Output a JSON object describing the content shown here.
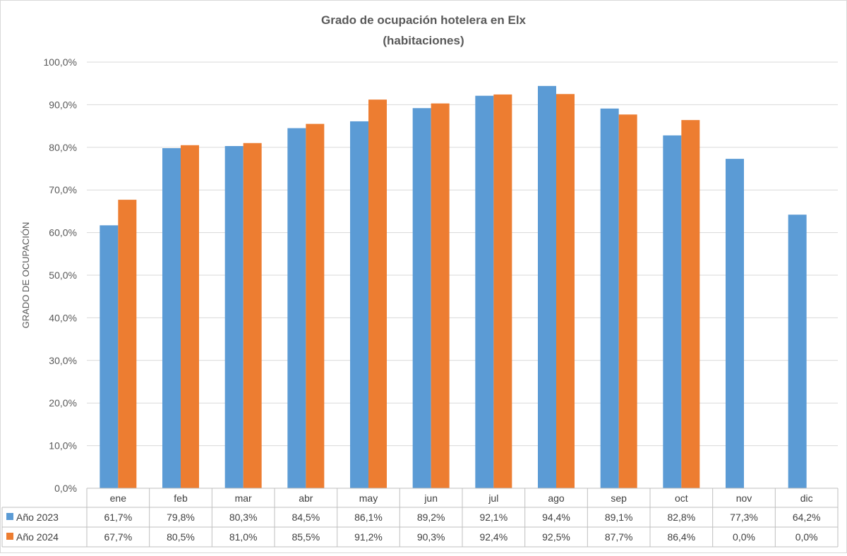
{
  "chart_data": {
    "type": "bar",
    "title_line1": "Grado de ocupación hotelera en Elx",
    "title_line2": "(habitaciones)",
    "ylabel": "GRADO DE OCUPACIÓN",
    "xlabel": "",
    "ylim": [
      0,
      100
    ],
    "y_ticks": [
      "0,0%",
      "10,0%",
      "20,0%",
      "30,0%",
      "40,0%",
      "50,0%",
      "60,0%",
      "70,0%",
      "80,0%",
      "90,0%",
      "100,0%"
    ],
    "grid": true,
    "legend": "data-table",
    "categories": [
      "ene",
      "feb",
      "mar",
      "abr",
      "may",
      "jun",
      "jul",
      "ago",
      "sep",
      "oct",
      "nov",
      "dic"
    ],
    "series": [
      {
        "name": "Año 2023",
        "color": "#5b9bd5",
        "values": [
          61.7,
          79.8,
          80.3,
          84.5,
          86.1,
          89.2,
          92.1,
          94.4,
          89.1,
          82.8,
          77.3,
          64.2
        ],
        "labels": [
          "61,7%",
          "79,8%",
          "80,3%",
          "84,5%",
          "86,1%",
          "89,2%",
          "92,1%",
          "94,4%",
          "89,1%",
          "82,8%",
          "77,3%",
          "64,2%"
        ]
      },
      {
        "name": "Año 2024",
        "color": "#ed7d31",
        "values": [
          67.7,
          80.5,
          81.0,
          85.5,
          91.2,
          90.3,
          92.4,
          92.5,
          87.7,
          86.4,
          0.0,
          0.0
        ],
        "labels": [
          "67,7%",
          "80,5%",
          "81,0%",
          "85,5%",
          "91,2%",
          "90,3%",
          "92,4%",
          "92,5%",
          "87,7%",
          "86,4%",
          "0,0%",
          "0,0%"
        ]
      }
    ]
  }
}
